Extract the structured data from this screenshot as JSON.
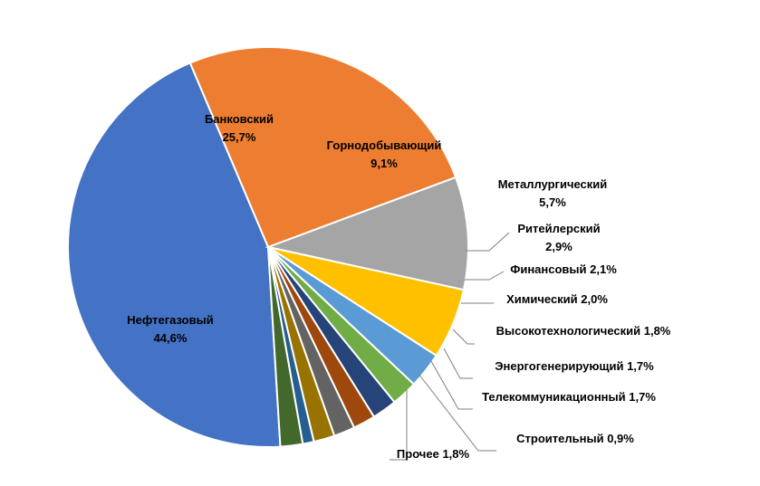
{
  "chart_data": {
    "type": "pie",
    "title": "",
    "slices": [
      {
        "name": "Нефтегазовый",
        "value_label": "44,6%",
        "value": 44.6,
        "color": "#4472C4"
      },
      {
        "name": "Банковский",
        "value_label": "25,7%",
        "value": 25.7,
        "color": "#ED7D31"
      },
      {
        "name": "Горнодобывающий",
        "value_label": "9,1%",
        "value": 9.1,
        "color": "#A5A5A5"
      },
      {
        "name": "Металлургический",
        "value_label": "5,7%",
        "value": 5.7,
        "color": "#FFC000"
      },
      {
        "name": "Ритейлерский",
        "value_label": "2,9%",
        "value": 2.9,
        "color": "#5B9BD5"
      },
      {
        "name": "Финансовый",
        "value_label": "2,1%",
        "value": 2.1,
        "color": "#70AD47"
      },
      {
        "name": "Химический",
        "value_label": "2,0%",
        "value": 2.0,
        "color": "#264478"
      },
      {
        "name": "Высокотехнологический",
        "value_label": "1,8%",
        "value": 1.8,
        "color": "#9E480E"
      },
      {
        "name": "Энергогенерирующий",
        "value_label": "1,7%",
        "value": 1.7,
        "color": "#636363"
      },
      {
        "name": "Телекоммуникационный",
        "value_label": "1,7%",
        "value": 1.7,
        "color": "#997300"
      },
      {
        "name": "Строительный",
        "value_label": "0,9%",
        "value": 0.9,
        "color": "#255E91"
      },
      {
        "name": "Прочее",
        "value_label": "1,8%",
        "value": 1.8,
        "color": "#43682B"
      }
    ]
  }
}
